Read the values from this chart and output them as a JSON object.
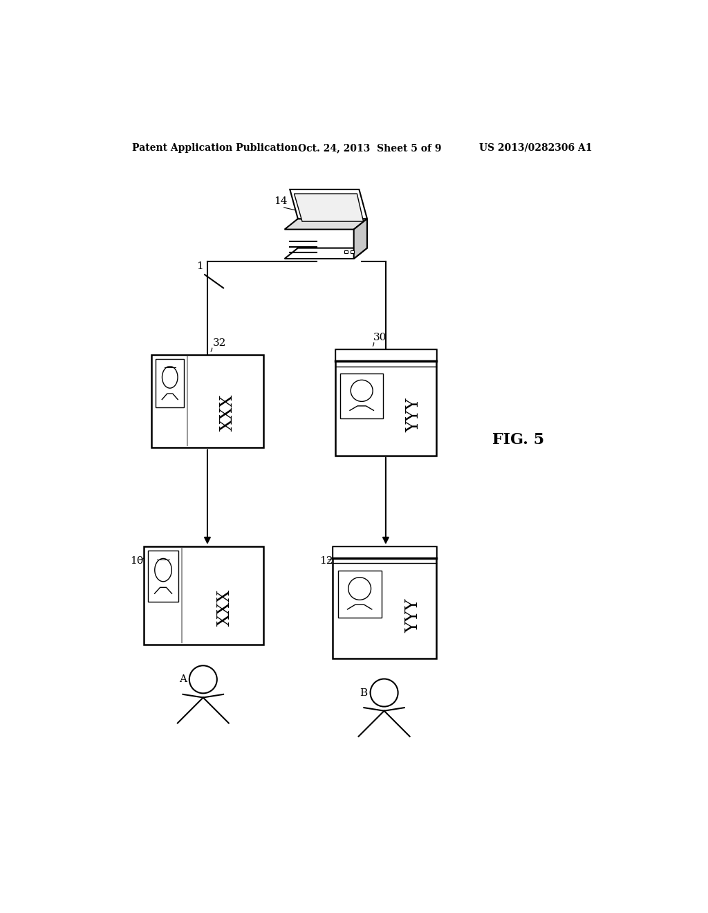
{
  "bg_color": "#ffffff",
  "header_left": "Patent Application Publication",
  "header_mid": "Oct. 24, 2013  Sheet 5 of 9",
  "header_right": "US 2013/0282306 A1",
  "fig_label": "FIG. 5",
  "label_1": "1",
  "label_14": "14",
  "label_32": "32",
  "label_30": "30",
  "label_10": "10",
  "label_12": "12",
  "label_A": "A",
  "label_B": "B",
  "text_xxx": "XXX",
  "text_yyy": "YYY"
}
